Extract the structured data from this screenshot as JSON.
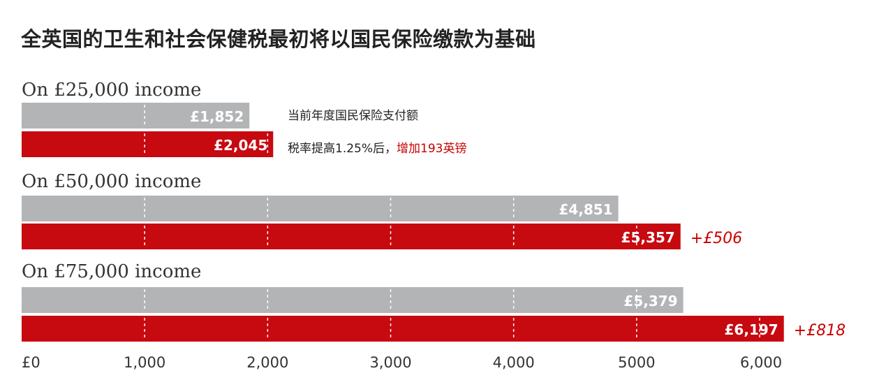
{
  "title": "全英国的卫生和社会保健税最初将以国民保险缴款为基础",
  "legend": {
    "current": "当前年度国民保险支付额",
    "increase_prefix": "税率提高1.25%后，",
    "increase_highlight": "增加193英镑"
  },
  "colors": {
    "current": "#b3b4b6",
    "new": "#c70910",
    "gridline": "#ffffff",
    "delta_text": "#c70000"
  },
  "chart_data": {
    "type": "bar",
    "orientation": "horizontal",
    "xlim": [
      0,
      6000
    ],
    "ticks": [
      {
        "value": 0,
        "label": "£0"
      },
      {
        "value": 1000,
        "label": "1,000"
      },
      {
        "value": 2000,
        "label": "2,000"
      },
      {
        "value": 3000,
        "label": "3,000"
      },
      {
        "value": 4000,
        "label": "4,000"
      },
      {
        "value": 5000,
        "label": "5000"
      },
      {
        "value": 6000,
        "label": "6,000"
      }
    ],
    "groups": [
      {
        "label": "On £25,000 income",
        "current": 1852,
        "current_label": "£1,852",
        "new": 2045,
        "new_label": "£2,045",
        "delta_label": ""
      },
      {
        "label": "On £50,000 income",
        "current": 4851,
        "current_label": "£4,851",
        "new": 5357,
        "new_label": "£5,357",
        "delta_label": "+£506"
      },
      {
        "label": "On £75,000 income",
        "current": 5379,
        "current_label": "£5,379",
        "new": 6197,
        "new_label": "£6,197",
        "delta_label": "+£818"
      }
    ]
  }
}
